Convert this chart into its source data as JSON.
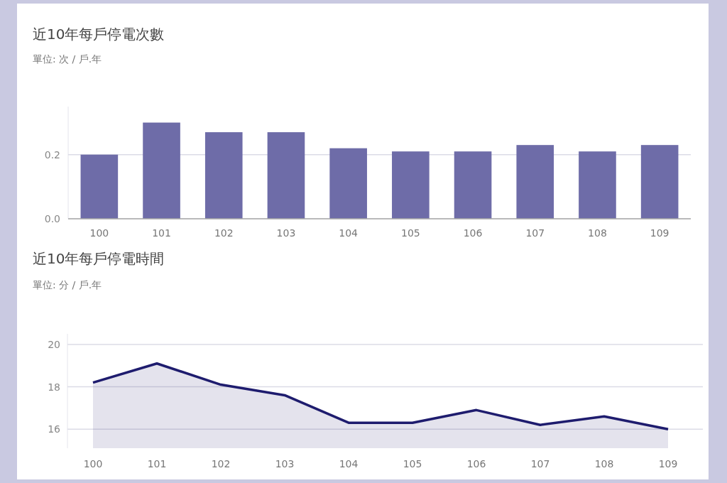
{
  "chart_data": [
    {
      "type": "bar",
      "title": "近10年每戶停電次數",
      "subtitle": "單位: 次 / 戶.年",
      "categories": [
        "100",
        "101",
        "102",
        "103",
        "104",
        "105",
        "106",
        "107",
        "108",
        "109"
      ],
      "series": [
        {
          "color": "#6e6ca8",
          "values": [
            0.2,
            0.3,
            0.27,
            0.27,
            0.22,
            0.21,
            0.21,
            0.23,
            0.21,
            0.23
          ]
        }
      ],
      "ylim": [
        0,
        0.35
      ],
      "yticks": [
        {
          "value": 0,
          "label": "0.0"
        },
        0.2
      ],
      "grid": "y"
    },
    {
      "type": "area",
      "title": "近10年每戶停電時間",
      "subtitle": "單位: 分 / 戶.年",
      "categories": [
        "100",
        "101",
        "102",
        "103",
        "104",
        "105",
        "106",
        "107",
        "108",
        "109"
      ],
      "series": [
        {
          "color": "#1e1c6e",
          "values": [
            18.2,
            19.1,
            18.1,
            17.6,
            16.3,
            16.3,
            16.9,
            16.2,
            16.6,
            16.0
          ]
        }
      ],
      "ylim": [
        15.1,
        20.5
      ],
      "yticks": [
        16,
        18,
        20
      ],
      "grid": "y"
    }
  ]
}
